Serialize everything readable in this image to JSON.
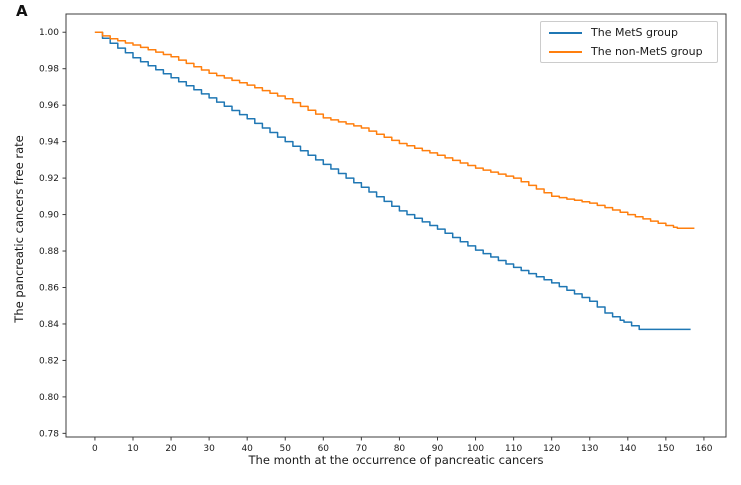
{
  "figure": {
    "panel_label": "A",
    "background": "#ffffff",
    "text_color": "#1a1a1a",
    "spine_color": "#3c3c3c"
  },
  "chart_data": {
    "type": "line",
    "subtype": "kaplan-meier-step",
    "title": "",
    "xlabel": "The month at the occurrence of pancreatic cancers",
    "ylabel": "The pancreatic cancers free rate",
    "xlim": [
      -7.6,
      165.8
    ],
    "ylim": [
      0.778,
      1.01
    ],
    "x_ticks": [
      0,
      10,
      20,
      30,
      40,
      50,
      60,
      70,
      80,
      90,
      100,
      110,
      120,
      130,
      140,
      150,
      160
    ],
    "y_ticks": [
      "0.78",
      "0.80",
      "0.82",
      "0.84",
      "0.86",
      "0.88",
      "0.90",
      "0.92",
      "0.94",
      "0.96",
      "0.98",
      "1.00"
    ],
    "grid": false,
    "legend": {
      "position": "upper right",
      "border_color": "#cccccc",
      "entries": [
        "The MetS group",
        "The non-MetS group"
      ]
    },
    "series": [
      {
        "name": "The MetS group",
        "color": "#1f77b4",
        "line_width": 1.5,
        "points": [
          [
            0,
            1.0
          ],
          [
            2,
            0.9967
          ],
          [
            4,
            0.994
          ],
          [
            6,
            0.9913
          ],
          [
            8,
            0.9887
          ],
          [
            10,
            0.986
          ],
          [
            12,
            0.9838
          ],
          [
            14,
            0.9816
          ],
          [
            16,
            0.9794
          ],
          [
            18,
            0.9772
          ],
          [
            20,
            0.975
          ],
          [
            22,
            0.9728
          ],
          [
            24,
            0.9706
          ],
          [
            26,
            0.9684
          ],
          [
            28,
            0.9662
          ],
          [
            30,
            0.964
          ],
          [
            32,
            0.9617
          ],
          [
            34,
            0.9594
          ],
          [
            36,
            0.9571
          ],
          [
            38,
            0.9548
          ],
          [
            40,
            0.9525
          ],
          [
            42,
            0.95
          ],
          [
            44,
            0.9475
          ],
          [
            46,
            0.945
          ],
          [
            48,
            0.9425
          ],
          [
            50,
            0.94
          ],
          [
            52,
            0.9375
          ],
          [
            54,
            0.935
          ],
          [
            56,
            0.9325
          ],
          [
            58,
            0.93
          ],
          [
            60,
            0.9275
          ],
          [
            62,
            0.925
          ],
          [
            64,
            0.9225
          ],
          [
            66,
            0.92
          ],
          [
            68,
            0.9175
          ],
          [
            70,
            0.915
          ],
          [
            72,
            0.9124
          ],
          [
            74,
            0.9098
          ],
          [
            76,
            0.9072
          ],
          [
            78,
            0.9046
          ],
          [
            80,
            0.902
          ],
          [
            82,
            0.9
          ],
          [
            84,
            0.898
          ],
          [
            86,
            0.896
          ],
          [
            88,
            0.894
          ],
          [
            90,
            0.892
          ],
          [
            92,
            0.8897
          ],
          [
            94,
            0.8874
          ],
          [
            96,
            0.8851
          ],
          [
            98,
            0.8828
          ],
          [
            100,
            0.8805
          ],
          [
            102,
            0.8786
          ],
          [
            104,
            0.8767
          ],
          [
            106,
            0.8748
          ],
          [
            108,
            0.8729
          ],
          [
            110,
            0.871
          ],
          [
            112,
            0.8693
          ],
          [
            114,
            0.8676
          ],
          [
            116,
            0.8659
          ],
          [
            118,
            0.8642
          ],
          [
            120,
            0.8625
          ],
          [
            122,
            0.8605
          ],
          [
            124,
            0.8585
          ],
          [
            126,
            0.8565
          ],
          [
            128,
            0.8545
          ],
          [
            130,
            0.8525
          ],
          [
            132,
            0.8493
          ],
          [
            134,
            0.846
          ],
          [
            136,
            0.844
          ],
          [
            138,
            0.842
          ],
          [
            139,
            0.841
          ],
          [
            141,
            0.839
          ],
          [
            143,
            0.837
          ],
          [
            156.5,
            0.837
          ]
        ]
      },
      {
        "name": "The non-MetS group",
        "color": "#ff7f0e",
        "line_width": 1.5,
        "points": [
          [
            0,
            1.0
          ],
          [
            2,
            0.998
          ],
          [
            4,
            0.9964
          ],
          [
            6,
            0.9953
          ],
          [
            8,
            0.9941
          ],
          [
            10,
            0.993
          ],
          [
            12,
            0.9917
          ],
          [
            14,
            0.9904
          ],
          [
            16,
            0.9891
          ],
          [
            18,
            0.9878
          ],
          [
            20,
            0.9865
          ],
          [
            22,
            0.9847
          ],
          [
            24,
            0.9829
          ],
          [
            26,
            0.9811
          ],
          [
            28,
            0.9793
          ],
          [
            30,
            0.9775
          ],
          [
            32,
            0.9762
          ],
          [
            34,
            0.9749
          ],
          [
            36,
            0.9736
          ],
          [
            38,
            0.9723
          ],
          [
            40,
            0.971
          ],
          [
            42,
            0.9695
          ],
          [
            44,
            0.968
          ],
          [
            46,
            0.9665
          ],
          [
            48,
            0.965
          ],
          [
            50,
            0.9635
          ],
          [
            52,
            0.9614
          ],
          [
            54,
            0.9593
          ],
          [
            56,
            0.9572
          ],
          [
            58,
            0.9551
          ],
          [
            60,
            0.953
          ],
          [
            62,
            0.9519
          ],
          [
            64,
            0.9508
          ],
          [
            66,
            0.9497
          ],
          [
            68,
            0.9486
          ],
          [
            70,
            0.9475
          ],
          [
            72,
            0.9458
          ],
          [
            74,
            0.9441
          ],
          [
            76,
            0.9424
          ],
          [
            78,
            0.9407
          ],
          [
            80,
            0.939
          ],
          [
            82,
            0.9377
          ],
          [
            84,
            0.9364
          ],
          [
            86,
            0.9351
          ],
          [
            88,
            0.9338
          ],
          [
            90,
            0.9325
          ],
          [
            92,
            0.9311
          ],
          [
            94,
            0.9297
          ],
          [
            96,
            0.9283
          ],
          [
            98,
            0.9269
          ],
          [
            100,
            0.9255
          ],
          [
            102,
            0.9244
          ],
          [
            104,
            0.9233
          ],
          [
            106,
            0.9222
          ],
          [
            108,
            0.9211
          ],
          [
            110,
            0.92
          ],
          [
            112,
            0.918
          ],
          [
            114,
            0.916
          ],
          [
            116,
            0.914
          ],
          [
            118,
            0.912
          ],
          [
            120,
            0.91
          ],
          [
            122,
            0.9093
          ],
          [
            124,
            0.9085
          ],
          [
            126,
            0.9078
          ],
          [
            128,
            0.907
          ],
          [
            130,
            0.9063
          ],
          [
            132,
            0.905
          ],
          [
            134,
            0.9038
          ],
          [
            136,
            0.9025
          ],
          [
            138,
            0.9013
          ],
          [
            140,
            0.9
          ],
          [
            142,
            0.8988
          ],
          [
            144,
            0.8976
          ],
          [
            146,
            0.8964
          ],
          [
            148,
            0.8952
          ],
          [
            150,
            0.894
          ],
          [
            152,
            0.893
          ],
          [
            153,
            0.8925
          ],
          [
            157.5,
            0.8925
          ]
        ]
      }
    ]
  }
}
